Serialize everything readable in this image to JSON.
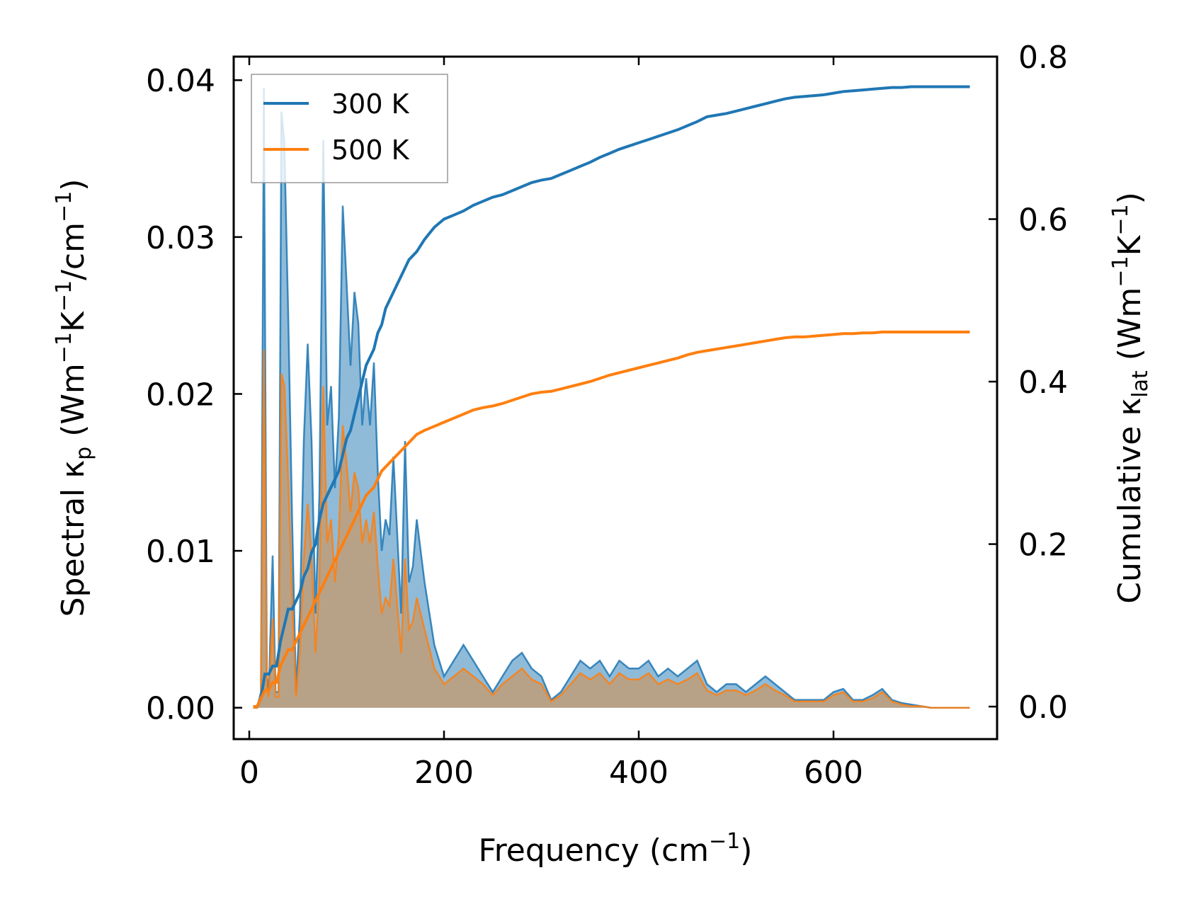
{
  "chart_data": {
    "type": "line",
    "xlabel": "Frequency (cm⁻¹)",
    "xlabel_parts": {
      "main": "Frequency (cm",
      "sup": "−1",
      "end": ")"
    },
    "ylabel_left": "Spectral κₚ (Wm⁻¹K⁻¹/cm⁻¹)",
    "ylabel_left_parts": {
      "a": "Spectral κ",
      "sub": "p",
      "b": " (Wm",
      "sup1": "−1",
      "c": "K",
      "sup2": "−1",
      "d": "/cm",
      "sup3": "−1",
      "e": ")"
    },
    "ylabel_right": "Cumulative κ_lat (Wm⁻¹K⁻¹)",
    "ylabel_right_parts": {
      "a": "Cumulative κ",
      "sub": "lat",
      "b": " (Wm",
      "sup1": "−1",
      "c": "K",
      "sup2": "−1",
      "d": ")"
    },
    "xlim": [
      -16,
      768
    ],
    "ylim_left": [
      -0.002,
      0.0415
    ],
    "ylim_right": [
      -0.04,
      0.8
    ],
    "xticks": [
      0,
      200,
      400,
      600
    ],
    "xtick_labels": [
      "0",
      "200",
      "400",
      "600"
    ],
    "yticks_left": [
      0.0,
      0.01,
      0.02,
      0.03,
      0.04
    ],
    "ytick_labels_left": [
      "0.00",
      "0.01",
      "0.02",
      "0.03",
      "0.04"
    ],
    "yticks_right": [
      0.0,
      0.2,
      0.4,
      0.6,
      0.8
    ],
    "ytick_labels_right": [
      "0.0",
      "0.2",
      "0.4",
      "0.6",
      "0.8"
    ],
    "legend": {
      "position": "top-left",
      "entries": [
        "300 K",
        "500 K"
      ]
    },
    "series": [
      {
        "name": "300 K",
        "color": "#1f77b4",
        "fill_color": "#1f77b4",
        "spectral": {
          "x": [
            4,
            8,
            12,
            15,
            18,
            20,
            24,
            27,
            30,
            33,
            36,
            40,
            44,
            48,
            52,
            56,
            60,
            64,
            68,
            72,
            76,
            80,
            84,
            88,
            92,
            96,
            100,
            104,
            108,
            112,
            116,
            120,
            124,
            128,
            132,
            136,
            140,
            144,
            148,
            152,
            156,
            160,
            164,
            168,
            172,
            176,
            180,
            190,
            200,
            210,
            220,
            230,
            240,
            250,
            260,
            270,
            280,
            290,
            300,
            310,
            320,
            330,
            340,
            350,
            360,
            370,
            380,
            390,
            400,
            410,
            420,
            430,
            440,
            450,
            460,
            470,
            480,
            490,
            500,
            510,
            520,
            530,
            540,
            550,
            560,
            570,
            580,
            590,
            600,
            610,
            620,
            630,
            640,
            650,
            660,
            670,
            680,
            690,
            700,
            740
          ],
          "y": [
            0,
            0,
            0.001,
            0.0395,
            0.002,
            0.001,
            0.0097,
            0.001,
            0.001,
            0.038,
            0.036,
            0.025,
            0.012,
            0.001,
            0.006,
            0.017,
            0.0232,
            0.017,
            0.006,
            0.0135,
            0.0362,
            0.018,
            0.0205,
            0.014,
            0.0185,
            0.032,
            0.027,
            0.0218,
            0.0265,
            0.0245,
            0.018,
            0.021,
            0.018,
            0.022,
            0.015,
            0.01,
            0.012,
            0.011,
            0.016,
            0.011,
            0.006,
            0.017,
            0.008,
            0.009,
            0.012,
            0.01,
            0.008,
            0.004,
            0.002,
            0.003,
            0.004,
            0.003,
            0.002,
            0.001,
            0.002,
            0.003,
            0.0035,
            0.0025,
            0.002,
            0.0005,
            0.001,
            0.002,
            0.003,
            0.0025,
            0.003,
            0.002,
            0.003,
            0.0025,
            0.0025,
            0.003,
            0.002,
            0.0025,
            0.002,
            0.0025,
            0.003,
            0.0015,
            0.001,
            0.0015,
            0.0015,
            0.001,
            0.0015,
            0.002,
            0.0015,
            0.001,
            0.0005,
            0.0005,
            0.0005,
            0.0005,
            0.001,
            0.0012,
            0.0005,
            0.0005,
            0.0008,
            0.0012,
            0.0005,
            0.0003,
            0.0002,
            0.0001,
            0,
            0
          ]
        },
        "cumulative": {
          "x": [
            4,
            8,
            12,
            16,
            20,
            24,
            28,
            32,
            36,
            40,
            44,
            48,
            52,
            56,
            60,
            64,
            68,
            72,
            76,
            80,
            84,
            88,
            92,
            96,
            100,
            104,
            108,
            112,
            116,
            120,
            124,
            128,
            132,
            136,
            140,
            144,
            148,
            152,
            156,
            160,
            164,
            168,
            172,
            180,
            190,
            200,
            210,
            220,
            230,
            240,
            250,
            260,
            270,
            280,
            290,
            300,
            310,
            320,
            330,
            340,
            350,
            360,
            370,
            380,
            390,
            400,
            410,
            420,
            430,
            440,
            450,
            460,
            470,
            480,
            490,
            500,
            510,
            520,
            530,
            540,
            550,
            560,
            570,
            580,
            590,
            600,
            610,
            620,
            630,
            640,
            650,
            660,
            670,
            680,
            690,
            700,
            740
          ],
          "y": [
            0,
            0,
            0.01,
            0.04,
            0.04,
            0.05,
            0.05,
            0.08,
            0.1,
            0.12,
            0.12,
            0.13,
            0.14,
            0.16,
            0.17,
            0.19,
            0.2,
            0.23,
            0.25,
            0.26,
            0.27,
            0.28,
            0.29,
            0.31,
            0.33,
            0.34,
            0.36,
            0.38,
            0.4,
            0.42,
            0.43,
            0.44,
            0.46,
            0.47,
            0.49,
            0.5,
            0.51,
            0.52,
            0.53,
            0.54,
            0.55,
            0.555,
            0.56,
            0.575,
            0.59,
            0.6,
            0.605,
            0.61,
            0.617,
            0.622,
            0.627,
            0.63,
            0.635,
            0.64,
            0.645,
            0.648,
            0.65,
            0.655,
            0.66,
            0.665,
            0.67,
            0.676,
            0.681,
            0.686,
            0.69,
            0.694,
            0.698,
            0.702,
            0.706,
            0.71,
            0.715,
            0.72,
            0.726,
            0.728,
            0.73,
            0.733,
            0.736,
            0.739,
            0.742,
            0.745,
            0.748,
            0.75,
            0.751,
            0.752,
            0.753,
            0.755,
            0.757,
            0.758,
            0.759,
            0.76,
            0.761,
            0.762,
            0.762,
            0.763,
            0.763,
            0.763,
            0.763
          ]
        }
      },
      {
        "name": "500 K",
        "color": "#ff7f0e",
        "fill_color": "#c49a6c",
        "spectral": {
          "x": [
            4,
            8,
            12,
            15,
            18,
            20,
            24,
            27,
            30,
            33,
            36,
            40,
            44,
            48,
            52,
            56,
            60,
            64,
            68,
            72,
            76,
            80,
            84,
            88,
            92,
            96,
            100,
            104,
            108,
            112,
            116,
            120,
            124,
            128,
            132,
            136,
            140,
            144,
            148,
            152,
            156,
            160,
            164,
            168,
            172,
            176,
            180,
            190,
            200,
            210,
            220,
            230,
            240,
            250,
            260,
            270,
            280,
            290,
            300,
            310,
            320,
            330,
            340,
            350,
            360,
            370,
            380,
            390,
            400,
            410,
            420,
            430,
            440,
            450,
            460,
            470,
            480,
            490,
            500,
            510,
            520,
            530,
            540,
            550,
            560,
            570,
            580,
            590,
            600,
            610,
            620,
            630,
            640,
            650,
            660,
            670,
            680,
            690,
            700,
            740
          ],
          "y": [
            0,
            0,
            0.0008,
            0.0228,
            0.0012,
            0.0007,
            0.0057,
            0.0007,
            0.0007,
            0.0213,
            0.0205,
            0.0145,
            0.007,
            0.0007,
            0.0035,
            0.0095,
            0.013,
            0.0095,
            0.0035,
            0.008,
            0.0205,
            0.0105,
            0.012,
            0.008,
            0.011,
            0.018,
            0.0155,
            0.0125,
            0.015,
            0.014,
            0.0105,
            0.012,
            0.0105,
            0.0125,
            0.009,
            0.006,
            0.007,
            0.0065,
            0.0095,
            0.0065,
            0.0035,
            0.0095,
            0.005,
            0.0055,
            0.007,
            0.006,
            0.005,
            0.0025,
            0.0015,
            0.002,
            0.0025,
            0.002,
            0.0015,
            0.0008,
            0.0015,
            0.002,
            0.0025,
            0.0018,
            0.0015,
            0.0004,
            0.0008,
            0.0015,
            0.0022,
            0.0018,
            0.0022,
            0.0015,
            0.0022,
            0.0018,
            0.0018,
            0.0022,
            0.0015,
            0.0018,
            0.0015,
            0.0018,
            0.0022,
            0.0011,
            0.0008,
            0.0011,
            0.0011,
            0.0008,
            0.0011,
            0.0015,
            0.0011,
            0.0008,
            0.0004,
            0.0004,
            0.0004,
            0.0004,
            0.0008,
            0.001,
            0.0004,
            0.0004,
            0.0006,
            0.001,
            0.0004,
            0.0002,
            0.0001,
            0.0001,
            0,
            0
          ]
        },
        "cumulative": {
          "x": [
            4,
            8,
            12,
            16,
            20,
            24,
            28,
            32,
            36,
            40,
            44,
            48,
            52,
            56,
            60,
            64,
            68,
            72,
            76,
            80,
            84,
            88,
            92,
            96,
            100,
            104,
            108,
            112,
            116,
            120,
            124,
            128,
            132,
            136,
            140,
            144,
            148,
            152,
            156,
            160,
            164,
            168,
            172,
            180,
            190,
            200,
            210,
            220,
            230,
            240,
            250,
            260,
            270,
            280,
            290,
            300,
            310,
            320,
            330,
            340,
            350,
            360,
            370,
            380,
            390,
            400,
            410,
            420,
            430,
            440,
            450,
            460,
            470,
            480,
            490,
            500,
            510,
            520,
            530,
            540,
            550,
            560,
            570,
            580,
            590,
            600,
            610,
            620,
            630,
            640,
            650,
            660,
            670,
            680,
            690,
            700,
            740
          ],
          "y": [
            0,
            0,
            0.01,
            0.02,
            0.02,
            0.03,
            0.03,
            0.05,
            0.06,
            0.07,
            0.07,
            0.08,
            0.09,
            0.1,
            0.11,
            0.12,
            0.13,
            0.14,
            0.15,
            0.16,
            0.17,
            0.18,
            0.19,
            0.2,
            0.21,
            0.22,
            0.23,
            0.24,
            0.25,
            0.26,
            0.265,
            0.27,
            0.28,
            0.29,
            0.295,
            0.3,
            0.305,
            0.31,
            0.315,
            0.32,
            0.325,
            0.33,
            0.335,
            0.34,
            0.345,
            0.35,
            0.355,
            0.36,
            0.365,
            0.368,
            0.37,
            0.373,
            0.377,
            0.381,
            0.385,
            0.387,
            0.388,
            0.391,
            0.394,
            0.397,
            0.4,
            0.404,
            0.408,
            0.411,
            0.414,
            0.417,
            0.42,
            0.423,
            0.426,
            0.429,
            0.433,
            0.436,
            0.438,
            0.44,
            0.442,
            0.444,
            0.446,
            0.448,
            0.45,
            0.452,
            0.454,
            0.455,
            0.455,
            0.456,
            0.457,
            0.458,
            0.459,
            0.459,
            0.46,
            0.46,
            0.461,
            0.461,
            0.461,
            0.461,
            0.461,
            0.461,
            0.461
          ]
        }
      }
    ]
  }
}
